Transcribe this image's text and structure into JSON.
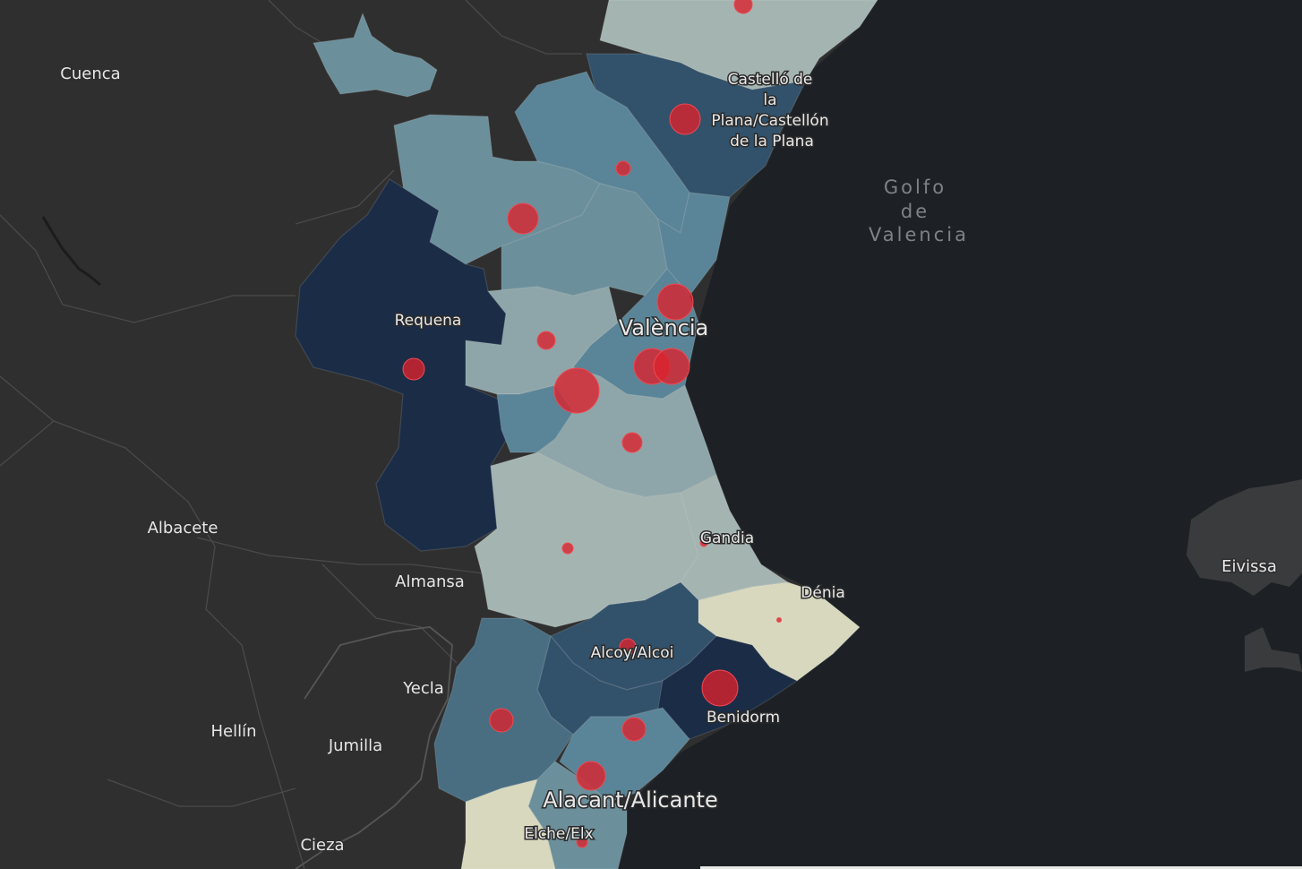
{
  "map": {
    "sea_label": [
      "Golfo",
      "de",
      "Valencia"
    ],
    "places_outside": [
      "Cuenca",
      "Albacete",
      "Almansa",
      "Yecla",
      "Hellín",
      "Jumilla",
      "Cieza",
      "Eivissa"
    ],
    "places_region": {
      "castellon": [
        "Castelló de",
        "la",
        "Plana/Castellón",
        "de la Plana"
      ],
      "valencia": "València",
      "requena": "Requena",
      "gandia": "Gandia",
      "denia": "Dénia",
      "alcoy": "Alcoy/Alcoi",
      "benidorm": "Benidorm",
      "alicante": "Alacant/Alicante",
      "elche": "Elche/Elx"
    },
    "colors": {
      "sea": "#1d2125",
      "land": "#2f2f2f",
      "bubble": "#d9232e",
      "choropleth_scale": [
        "#d7d8bd",
        "#a4b4b1",
        "#8ea6a9",
        "#6b8f9b",
        "#5a8497",
        "#496e82",
        "#32516a",
        "#1b2c46"
      ]
    }
  }
}
